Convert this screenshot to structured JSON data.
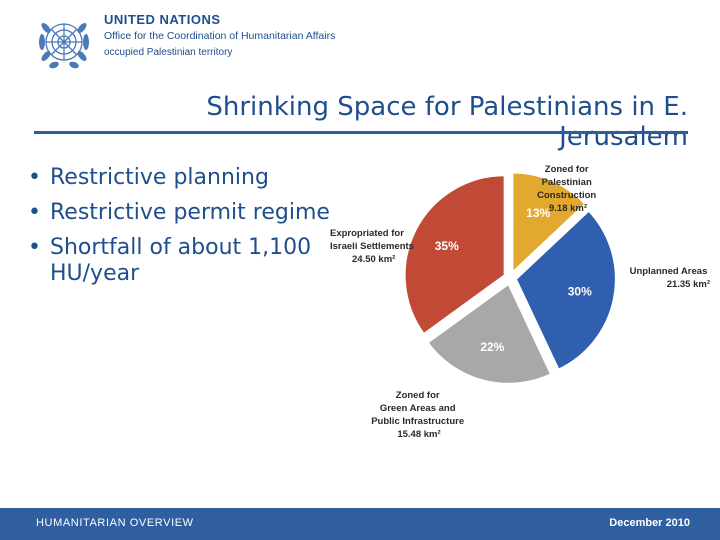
{
  "header": {
    "org_name": "UNITED NATIONS",
    "org_sub": "Office for the Coordination of Humanitarian Affairs",
    "org_sub2": "occupied Palestinian territory"
  },
  "title": "Shrinking Space for Palestinians in E. Jerusalem",
  "bullets": [
    "Restrictive planning",
    "Restrictive permit regime",
    "Shortfall of  about 1,100 HU/year"
  ],
  "chart_data": {
    "type": "pie",
    "slices": [
      {
        "name": "Zoned for Palestinian Construction",
        "area": "9.18 km²",
        "percent": 13,
        "label": "13%",
        "color": "#e3a82e"
      },
      {
        "name": "Unplanned Areas",
        "area": "21.35 km²",
        "percent": 30,
        "label": "30%",
        "color": "#2f5fae"
      },
      {
        "name": "Zoned for Green Areas and Public Infrastructure",
        "area": "15.48 km²",
        "percent": 22,
        "label": "22%",
        "color": "#a8a8a8"
      },
      {
        "name": "Expropriated for Israeli Settlements",
        "area": "24.50 km²",
        "percent": 35,
        "label": "35%",
        "color": "#c04a35"
      }
    ],
    "callouts": {
      "palestinian": [
        "Zoned for",
        "Palestinian",
        "Construction",
        "9.18 km²"
      ],
      "unplanned": [
        "Unplanned Areas",
        "21.35 km²"
      ],
      "green": [
        "Zoned for",
        "Green Areas and",
        "Public Infrastructure",
        "15.48 km²"
      ],
      "settlements": [
        "Expropriated for",
        "Israeli Settlements",
        "24.50 km²"
      ]
    }
  },
  "footer": {
    "left": "HUMANITARIAN  OVERVIEW",
    "right": "December 2010"
  }
}
